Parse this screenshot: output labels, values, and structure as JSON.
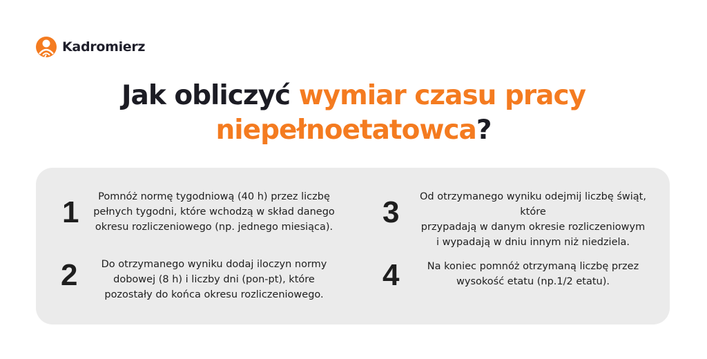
{
  "brand": {
    "name": "Kadromierz",
    "color": "#f47b20"
  },
  "title": {
    "part1": "Jak obliczyć ",
    "highlight1": "wymiar czasu pracy",
    "highlight2": "niepełnoetatowca",
    "part2": "?"
  },
  "steps": [
    {
      "number": "1",
      "text": "Pomnóż normę tygodniową (40 h) przez liczbę\npełnych tygodni, które wchodzą w skład danego\nokresu rozliczeniowego (np. jednego miesiąca)."
    },
    {
      "number": "2",
      "text": "Do otrzymanego wyniku dodaj iloczyn normy\ndobowej (8 h) i liczby dni (pon-pt), które\npozostały do końca okresu rozliczeniowego."
    },
    {
      "number": "3",
      "text": "Od otrzymanego wyniku odejmij liczbę świąt, które\nprzypadają w danym okresie rozliczeniowym\ni wypadają w dniu innym niż niedziela."
    },
    {
      "number": "4",
      "text": "Na koniec pomnóż otrzymaną liczbę przez\nwysokość etatu (np.1/2 etatu)."
    }
  ]
}
